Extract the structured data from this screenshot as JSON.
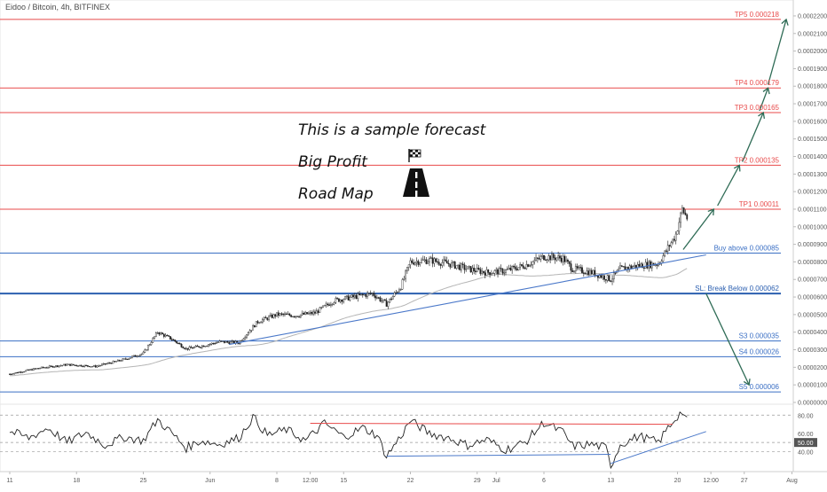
{
  "header": {
    "symbol_text": "Eidoo / Bitcoin, 4h, BITFINEX"
  },
  "chart_data": {
    "type": "candlestick",
    "title": "Eidoo / Bitcoin, 4h, BITFINEX",
    "price_axis": {
      "ylim": [
        2e-06,
        0.000222
      ],
      "ticks": [
        "0.00022000",
        "0.00021000",
        "0.00020000",
        "0.00019000",
        "0.00018000",
        "0.00017000",
        "0.00016000",
        "0.00015000",
        "0.00014000",
        "0.00013000",
        "0.00012000",
        "0.00011000",
        "0.00010000",
        "0.00009000",
        "0.00008000",
        "0.00007000",
        "0.00006000",
        "0.00005000",
        "0.00004000",
        "0.00003000",
        "0.00002000",
        "0.00001000",
        "0.00000000"
      ]
    },
    "x_axis": {
      "ticks": [
        {
          "label": "11",
          "day": 0
        },
        {
          "label": "18",
          "day": 7
        },
        {
          "label": "25",
          "day": 14
        },
        {
          "label": "Jun",
          "day": 21
        },
        {
          "label": "8",
          "day": 28
        },
        {
          "label": "12:00",
          "day": 31.5
        },
        {
          "label": "15",
          "day": 35
        },
        {
          "label": "22",
          "day": 42
        },
        {
          "label": "29",
          "day": 49
        },
        {
          "label": "Jul",
          "day": 51
        },
        {
          "label": "6",
          "day": 56
        },
        {
          "label": "13",
          "day": 63
        },
        {
          "label": "20",
          "day": 70
        },
        {
          "label": "12:00",
          "day": 73.5
        },
        {
          "label": "27",
          "day": 77
        },
        {
          "label": "Aug",
          "day": 82
        }
      ]
    },
    "levels": [
      {
        "label": "TP5 0.000218",
        "value": 0.000218,
        "color": "#e84a4a",
        "width": 1
      },
      {
        "label": "TP4 0.000179",
        "value": 0.000179,
        "color": "#e84a4a",
        "width": 1
      },
      {
        "label": "TP3 0.000165",
        "value": 0.000165,
        "color": "#e84a4a",
        "width": 1
      },
      {
        "label": "TP2 0.000135",
        "value": 0.000135,
        "color": "#e84a4a",
        "width": 1
      },
      {
        "label": "TP1 0.00011",
        "value": 0.00011,
        "color": "#e84a4a",
        "width": 1
      },
      {
        "label": "Buy above 0.000085",
        "value": 8.5e-05,
        "color": "#3a6fc4",
        "width": 1
      },
      {
        "label": "SL: Break Below 0.000062",
        "value": 6.2e-05,
        "color": "#2b5fb0",
        "width": 2
      },
      {
        "label": "S3 0.000035",
        "value": 3.5e-05,
        "color": "#3a6fc4",
        "width": 1
      },
      {
        "label": "S4 0.000026",
        "value": 2.6e-05,
        "color": "#3a6fc4",
        "width": 1
      },
      {
        "label": "S5 0.000006",
        "value": 6e-06,
        "color": "#3a6fc4",
        "width": 1
      }
    ],
    "price_series": [
      {
        "day": 0,
        "close": 1.62e-05
      },
      {
        "day": 3,
        "close": 1.95e-05
      },
      {
        "day": 6,
        "close": 2.15e-05
      },
      {
        "day": 9,
        "close": 2.05e-05
      },
      {
        "day": 12,
        "close": 2.45e-05
      },
      {
        "day": 14,
        "close": 2.8e-05
      },
      {
        "day": 15.5,
        "close": 4e-05
      },
      {
        "day": 17,
        "close": 3.6e-05
      },
      {
        "day": 18.5,
        "close": 3.05e-05
      },
      {
        "day": 20,
        "close": 3.2e-05
      },
      {
        "day": 22,
        "close": 3.45e-05
      },
      {
        "day": 24,
        "close": 3.4e-05
      },
      {
        "day": 26,
        "close": 4.6e-05
      },
      {
        "day": 28,
        "close": 5e-05
      },
      {
        "day": 30,
        "close": 4.95e-05
      },
      {
        "day": 32,
        "close": 5.1e-05
      },
      {
        "day": 34,
        "close": 5.8e-05
      },
      {
        "day": 36,
        "close": 6e-05
      },
      {
        "day": 38,
        "close": 6.2e-05
      },
      {
        "day": 39.5,
        "close": 5.6e-05
      },
      {
        "day": 41,
        "close": 6.6e-05
      },
      {
        "day": 42,
        "close": 8e-05
      },
      {
        "day": 44,
        "close": 8.1e-05
      },
      {
        "day": 46,
        "close": 7.9e-05
      },
      {
        "day": 48,
        "close": 7.6e-05
      },
      {
        "day": 50,
        "close": 7.4e-05
      },
      {
        "day": 52,
        "close": 7.5e-05
      },
      {
        "day": 54,
        "close": 7.8e-05
      },
      {
        "day": 56,
        "close": 8.3e-05
      },
      {
        "day": 58,
        "close": 8.2e-05
      },
      {
        "day": 59,
        "close": 7.6e-05
      },
      {
        "day": 61,
        "close": 7.4e-05
      },
      {
        "day": 63,
        "close": 7e-05
      },
      {
        "day": 64,
        "close": 7.6e-05
      },
      {
        "day": 66,
        "close": 7.8e-05
      },
      {
        "day": 68,
        "close": 7.9e-05
      },
      {
        "day": 69,
        "close": 8.8e-05
      },
      {
        "day": 69.8,
        "close": 9.5e-05
      },
      {
        "day": 70.5,
        "close": 0.00011
      },
      {
        "day": 71,
        "close": 0.000105
      }
    ],
    "annotations": {
      "text_lines": [
        "This is a sample forecast",
        "Big Profit",
        "Road Map"
      ]
    },
    "rsi": {
      "ylim": [
        20,
        90
      ],
      "ticks": [
        "80.00",
        "60.00",
        "50.00",
        "40.00"
      ],
      "highlight": "50.00",
      "values": [
        {
          "day": 0,
          "v": 62
        },
        {
          "day": 2,
          "v": 55
        },
        {
          "day": 4,
          "v": 66
        },
        {
          "day": 6,
          "v": 50
        },
        {
          "day": 8,
          "v": 61
        },
        {
          "day": 10,
          "v": 47
        },
        {
          "day": 12,
          "v": 56
        },
        {
          "day": 14,
          "v": 52
        },
        {
          "day": 15.5,
          "v": 75
        },
        {
          "day": 17,
          "v": 60
        },
        {
          "day": 18.5,
          "v": 44
        },
        {
          "day": 20,
          "v": 52
        },
        {
          "day": 22,
          "v": 48
        },
        {
          "day": 24,
          "v": 55
        },
        {
          "day": 25.5,
          "v": 78
        },
        {
          "day": 27,
          "v": 58
        },
        {
          "day": 29,
          "v": 64
        },
        {
          "day": 31,
          "v": 52
        },
        {
          "day": 33,
          "v": 71
        },
        {
          "day": 35,
          "v": 56
        },
        {
          "day": 37,
          "v": 66
        },
        {
          "day": 38.5,
          "v": 58
        },
        {
          "day": 39.5,
          "v": 35
        },
        {
          "day": 41,
          "v": 57
        },
        {
          "day": 42,
          "v": 74
        },
        {
          "day": 44,
          "v": 60
        },
        {
          "day": 46,
          "v": 55
        },
        {
          "day": 48,
          "v": 47
        },
        {
          "day": 50,
          "v": 53
        },
        {
          "day": 52,
          "v": 42
        },
        {
          "day": 54,
          "v": 50
        },
        {
          "day": 56,
          "v": 72
        },
        {
          "day": 58,
          "v": 61
        },
        {
          "day": 59,
          "v": 46
        },
        {
          "day": 61,
          "v": 48
        },
        {
          "day": 62.5,
          "v": 44
        },
        {
          "day": 63,
          "v": 24
        },
        {
          "day": 64,
          "v": 48
        },
        {
          "day": 66,
          "v": 57
        },
        {
          "day": 68,
          "v": 50
        },
        {
          "day": 69,
          "v": 66
        },
        {
          "day": 70,
          "v": 79
        },
        {
          "day": 70.5,
          "v": 84
        },
        {
          "day": 71,
          "v": 73
        }
      ]
    }
  }
}
